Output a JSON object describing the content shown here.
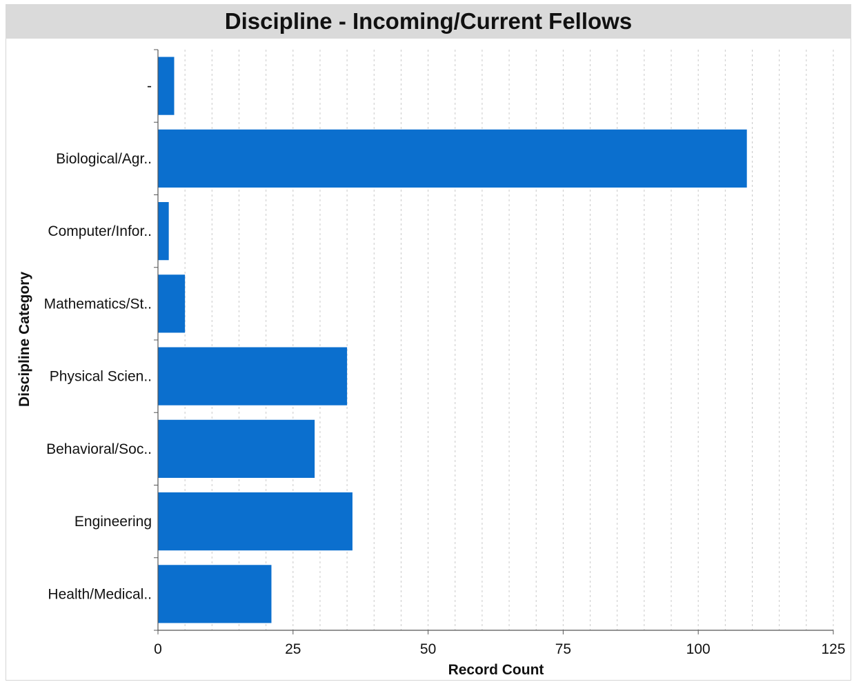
{
  "chart_data": {
    "type": "bar",
    "orientation": "horizontal",
    "title": "Discipline - Incoming/Current Fellows",
    "xlabel": "Record Count",
    "ylabel": "Discipline Category",
    "categories": [
      "-",
      "Biological/Agr..",
      "Computer/Infor..",
      "Mathematics/St..",
      "Physical Scien..",
      "Behavioral/Soc..",
      "Engineering",
      "Health/Medical.."
    ],
    "values": [
      3,
      109,
      2,
      5,
      35,
      29,
      36,
      21
    ],
    "xlim": [
      0,
      125
    ],
    "xticks": [
      0,
      25,
      50,
      75,
      100,
      125
    ],
    "grid": "vertical dashed",
    "bar_color": "#0b6fce"
  }
}
